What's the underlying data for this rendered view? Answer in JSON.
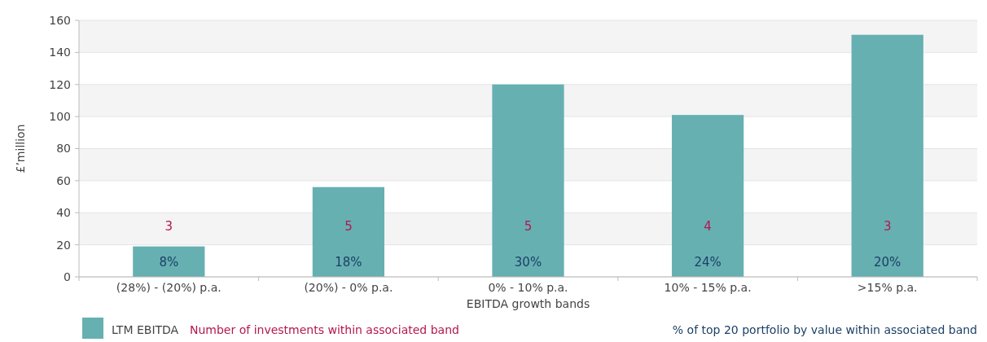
{
  "chart_data": {
    "type": "bar",
    "xlabel": "EBITDA growth bands",
    "ylabel": "£’million",
    "categories": [
      "(28%) - (20%) p.a.",
      "(20%) - 0% p.a.",
      "0% - 10% p.a.",
      "10% - 15% p.a.",
      ">15% p.a."
    ],
    "series": [
      {
        "name": "LTM EBITDA",
        "color": "#66b0b2",
        "values": [
          19,
          56,
          120,
          101,
          151
        ]
      }
    ],
    "ylim": [
      0,
      160
    ],
    "yticks": [
      0,
      20,
      40,
      60,
      80,
      100,
      120,
      140,
      160
    ],
    "grid": "y",
    "legend": "bottom",
    "annotations": [
      "3",
      "5",
      "5",
      "4",
      "3",
      "8%",
      "18%",
      "30%",
      "24%",
      "20%",
      "Number of investments within associated band",
      "% of top 20 portfolio by value within associated band"
    ]
  }
}
